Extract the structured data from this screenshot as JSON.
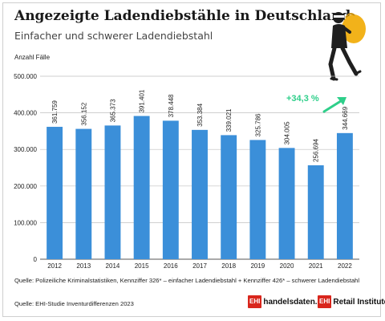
{
  "header": {
    "title": "Angezeigte Ladendiebstähle in Deutschland",
    "subtitle": "Einfacher und schwerer Ladendiebstahl"
  },
  "chart_data": {
    "type": "bar",
    "ylabel": "Anzahl Fälle",
    "categories": [
      "2012",
      "2013",
      "2014",
      "2015",
      "2016",
      "2017",
      "2018",
      "2019",
      "2020",
      "2021",
      "2022"
    ],
    "values": [
      361759,
      356152,
      365373,
      391401,
      378448,
      353384,
      339021,
      325786,
      304005,
      256694,
      344669
    ],
    "value_labels": [
      "361.759",
      "356.152",
      "365.373",
      "391.401",
      "378.448",
      "353.384",
      "339.021",
      "325.786",
      "304.005",
      "256.694",
      "344.669"
    ],
    "ylim": [
      0,
      500000
    ],
    "yticks": [
      0,
      100000,
      200000,
      300000,
      400000,
      500000
    ],
    "ytick_labels": [
      "0",
      "100.000",
      "200.000",
      "300.000",
      "400.000",
      "500.000"
    ],
    "grid": true,
    "bar_color": "#3b8fd9",
    "annotation": {
      "text": "+34,3 %",
      "color": "#2ecf8a"
    }
  },
  "footer": {
    "source_note": "Quelle: Polizeiliche Kriminalstatistiken, Kennziffer 326* – einfacher Ladendiebstahl + Kennziffer 426* – schwerer Ladendiebstahl",
    "study_note": "Quelle: EHI-Studie Inventurdifferenzen 2023",
    "logo1_badge": "EHI",
    "logo1_text": "handelsdaten.de",
    "logo2_badge": "EHI",
    "logo2_text": "Retail Institute"
  },
  "illustration": {
    "icon": "thief-with-bag-icon",
    "bag_color": "#f2b21a"
  }
}
